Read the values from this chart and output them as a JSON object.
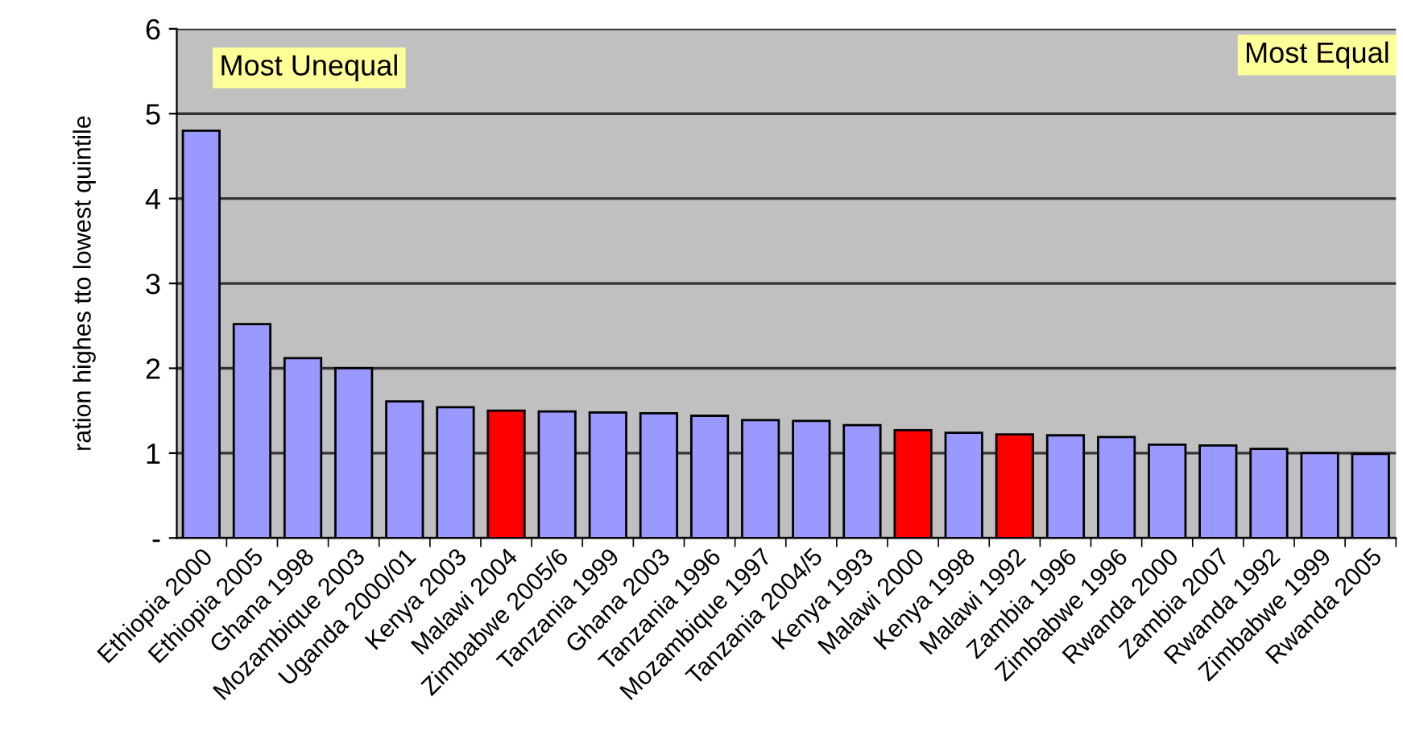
{
  "chart_data": {
    "type": "bar",
    "ylabel": "ration highes tto lowest quintile",
    "categories": [
      "Ethiopia 2000",
      "Ethiopia 2005",
      "Ghana 1998",
      "Mozambique 2003",
      "Uganda 2000/01",
      "Kenya 2003",
      "Malawi 2004",
      "Zimbabwe 2005/6",
      "Tanzania 1999",
      "Ghana 2003",
      "Tanzania 1996",
      "Mozambique 1997",
      "Tanzania 2004/5",
      "Kenya 1993",
      "Malawi 2000",
      "Kenya 1998",
      "Malawi 1992",
      "Zambia 1996",
      "Zimbabwe 1996",
      "Rwanda 2000",
      "Zambia 2007",
      "Rwanda 1992",
      "Zimbabwe 1999",
      "Rwanda 2005"
    ],
    "values": [
      4.8,
      2.52,
      2.12,
      2.0,
      1.61,
      1.54,
      1.5,
      1.49,
      1.48,
      1.47,
      1.44,
      1.39,
      1.38,
      1.33,
      1.27,
      1.24,
      1.22,
      1.21,
      1.19,
      1.1,
      1.09,
      1.05,
      1.0,
      0.99
    ],
    "colors": [
      "#9999ff",
      "#9999ff",
      "#9999ff",
      "#9999ff",
      "#9999ff",
      "#9999ff",
      "#ff0000",
      "#9999ff",
      "#9999ff",
      "#9999ff",
      "#9999ff",
      "#9999ff",
      "#9999ff",
      "#9999ff",
      "#ff0000",
      "#9999ff",
      "#ff0000",
      "#9999ff",
      "#9999ff",
      "#9999ff",
      "#9999ff",
      "#9999ff",
      "#9999ff",
      "#9999ff"
    ],
    "ylim": [
      0,
      6
    ],
    "yticks": [
      {
        "value": 0,
        "label": "-"
      },
      1,
      2,
      3,
      4,
      5,
      6
    ],
    "grid": "y",
    "annotations": [
      "Most Unequal",
      "Most Equal"
    ]
  }
}
